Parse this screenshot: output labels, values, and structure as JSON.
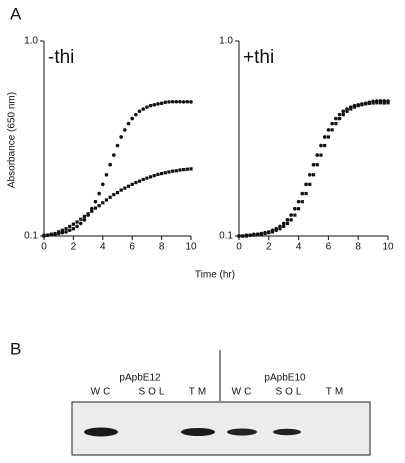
{
  "figure": {
    "panel_label": "A",
    "y_label": "Absorbance (650 nm)",
    "x_label": "Time (hr)"
  },
  "chart_data": [
    {
      "type": "scatter",
      "annotation": "-thi",
      "log_y": true,
      "xlim": [
        0,
        10
      ],
      "xticks": [
        0,
        2,
        4,
        6,
        8,
        10
      ],
      "ylim": [
        0.1,
        1
      ],
      "yticks": [
        0.1,
        {
          "value": 1,
          "label": "1.0"
        }
      ],
      "x": [
        0,
        0.25,
        0.5,
        0.75,
        1,
        1.25,
        1.5,
        1.75,
        2,
        2.25,
        2.5,
        2.75,
        3,
        3.25,
        3.5,
        3.75,
        4,
        4.25,
        4.5,
        4.75,
        5,
        5.25,
        5.5,
        5.75,
        6,
        6.25,
        6.5,
        6.75,
        7,
        7.25,
        7.5,
        7.75,
        8,
        8.25,
        8.5,
        8.75,
        9,
        9.25,
        9.5,
        9.75,
        10
      ],
      "series": [
        {
          "marker": "circle",
          "color": "#111111",
          "values": [
            0.101,
            0.101,
            0.102,
            0.102,
            0.103,
            0.104,
            0.105,
            0.107,
            0.109,
            0.112,
            0.116,
            0.121,
            0.128,
            0.138,
            0.15,
            0.165,
            0.184,
            0.206,
            0.232,
            0.26,
            0.291,
            0.322,
            0.35,
            0.377,
            0.4,
            0.419,
            0.436,
            0.448,
            0.458,
            0.466,
            0.471,
            0.476,
            0.479,
            0.485,
            0.487,
            0.488,
            0.488,
            0.488,
            0.487,
            0.488,
            0.487
          ]
        },
        {
          "marker": "square",
          "color": "#111111",
          "values": [
            0.1,
            0.101,
            0.102,
            0.103,
            0.105,
            0.107,
            0.109,
            0.112,
            0.115,
            0.118,
            0.122,
            0.126,
            0.13,
            0.134,
            0.139,
            0.143,
            0.148,
            0.153,
            0.158,
            0.163,
            0.167,
            0.172,
            0.176,
            0.18,
            0.184,
            0.188,
            0.191,
            0.195,
            0.198,
            0.201,
            0.204,
            0.207,
            0.209,
            0.211,
            0.213,
            0.215,
            0.216,
            0.218,
            0.219,
            0.22,
            0.221
          ]
        }
      ]
    },
    {
      "type": "scatter",
      "annotation": "+thi",
      "log_y": true,
      "xlim": [
        0,
        10
      ],
      "xticks": [
        0,
        2,
        4,
        6,
        8,
        10
      ],
      "ylim": [
        0.1,
        1
      ],
      "yticks": [
        0.1,
        {
          "value": 1,
          "label": "1.0"
        }
      ],
      "x": [
        0,
        0.25,
        0.5,
        0.75,
        1,
        1.25,
        1.5,
        1.75,
        2,
        2.25,
        2.5,
        2.75,
        3,
        3.25,
        3.5,
        3.75,
        4,
        4.25,
        4.5,
        4.75,
        5,
        5.25,
        5.5,
        5.75,
        6,
        6.25,
        6.5,
        6.75,
        7,
        7.25,
        7.5,
        7.75,
        8,
        8.25,
        8.5,
        8.75,
        9,
        9.25,
        9.5,
        9.75,
        10
      ],
      "series": [
        {
          "marker": "circle",
          "color": "#111111",
          "values": [
            0.1,
            0.1,
            0.101,
            0.101,
            0.102,
            0.102,
            0.103,
            0.104,
            0.105,
            0.107,
            0.109,
            0.112,
            0.116,
            0.121,
            0.128,
            0.138,
            0.15,
            0.165,
            0.184,
            0.206,
            0.232,
            0.26,
            0.291,
            0.322,
            0.35,
            0.377,
            0.4,
            0.419,
            0.436,
            0.448,
            0.458,
            0.466,
            0.471,
            0.476,
            0.479,
            0.485,
            0.49,
            0.492,
            0.493,
            0.493,
            0.492
          ]
        },
        {
          "marker": "square",
          "color": "#111111",
          "values": [
            0.1,
            0.1,
            0.1,
            0.101,
            0.101,
            0.102,
            0.102,
            0.103,
            0.104,
            0.105,
            0.107,
            0.109,
            0.112,
            0.116,
            0.121,
            0.128,
            0.138,
            0.15,
            0.165,
            0.184,
            0.206,
            0.232,
            0.26,
            0.291,
            0.322,
            0.35,
            0.377,
            0.4,
            0.419,
            0.436,
            0.448,
            0.458,
            0.466,
            0.471,
            0.476,
            0.479,
            0.481,
            0.482,
            0.482,
            0.481,
            0.482
          ]
        }
      ]
    }
  ],
  "blot": {
    "panel_label": "B",
    "groups": [
      {
        "label": "pApbE12",
        "lanes": [
          "WC",
          "SOL",
          "TM"
        ]
      },
      {
        "label": "pApbE10",
        "lanes": [
          "WC",
          "SOL",
          "TM"
        ]
      }
    ]
  }
}
